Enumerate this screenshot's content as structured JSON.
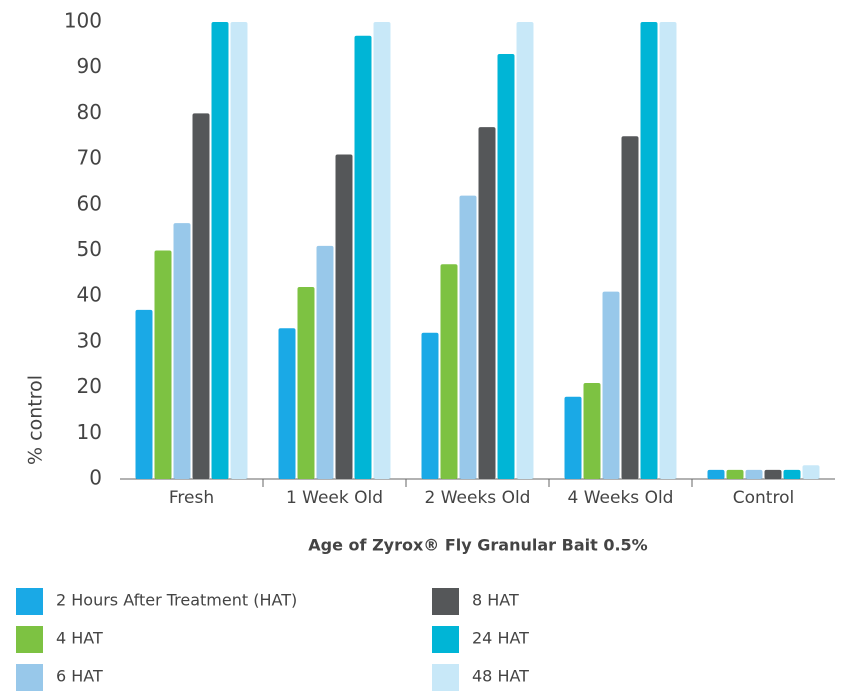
{
  "chart_data": {
    "type": "bar",
    "x_label": "Age of Zyrox® Fly Granular Bait 0.5%",
    "y_label": "% control",
    "categories": [
      "Fresh",
      "1 Week Old",
      "2 Weeks Old",
      "4 Weeks Old",
      "Control"
    ],
    "series": [
      {
        "name": "2 Hours After Treatment (HAT)",
        "color": "#1aa9e6",
        "values": [
          37,
          33,
          32,
          18,
          2
        ]
      },
      {
        "name": "4 HAT",
        "color": "#7dc242",
        "values": [
          50,
          42,
          47,
          21,
          2
        ]
      },
      {
        "name": "6 HAT",
        "color": "#98c8ea",
        "values": [
          56,
          51,
          62,
          41,
          2
        ]
      },
      {
        "name": "8 HAT",
        "color": "#555759",
        "values": [
          80,
          71,
          77,
          75,
          2
        ]
      },
      {
        "name": "24 HAT",
        "color": "#00b5d6",
        "values": [
          100,
          97,
          93,
          100,
          2
        ]
      },
      {
        "name": "48 HAT",
        "color": "#c8e8f8",
        "values": [
          100,
          100,
          100,
          100,
          3
        ]
      }
    ],
    "ylim": [
      0,
      100
    ],
    "yticks": [
      0,
      10,
      20,
      30,
      40,
      50,
      60,
      70,
      80,
      90,
      100
    ],
    "grid": false
  }
}
